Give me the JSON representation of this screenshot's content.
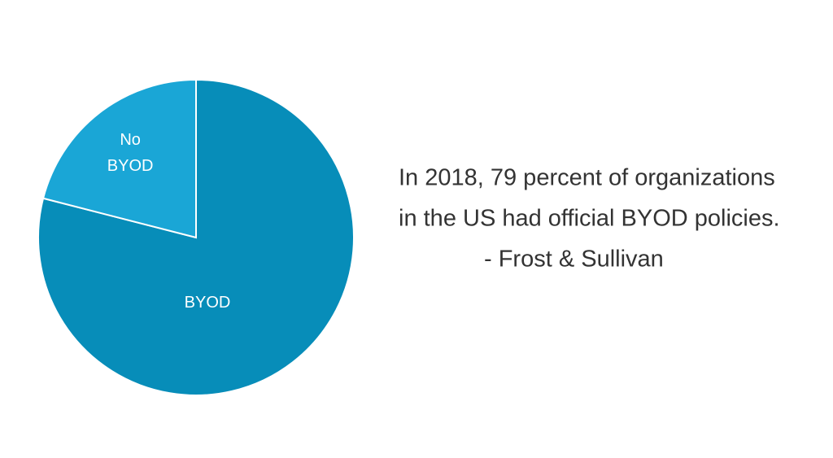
{
  "chart_data": {
    "type": "pie",
    "categories": [
      "BYOD",
      "No BYOD"
    ],
    "values": [
      79,
      21
    ],
    "colors": [
      "#078db9",
      "#1aa6d6"
    ],
    "annotation": [
      "In 2018, 79 percent of organizations",
      "in the US had official BYOD policies.",
      "- Frost & Sullivan"
    ]
  }
}
